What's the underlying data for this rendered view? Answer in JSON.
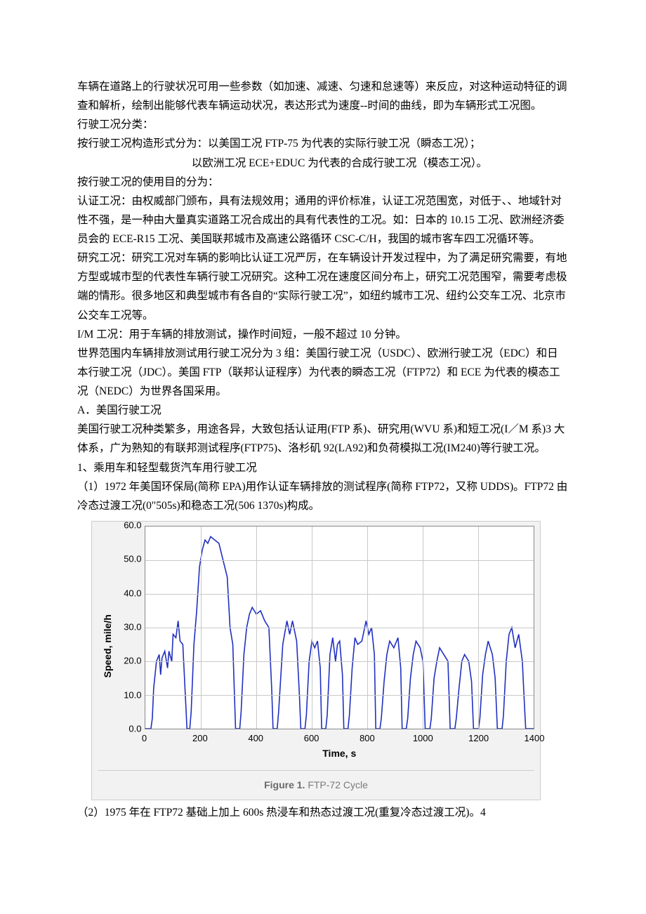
{
  "paragraphs": {
    "p1": "车辆在道路上的行驶状况可用一些参数（如加速、减速、匀速和怠速等）来反应，对这种运动特征的调查和解析，绘制出能够代表车辆运动状况，表达形式为速度--时间的曲线，即为车辆形式工况图。",
    "p2": "行驶工况分类：",
    "p3": "按行驶工况构造形式分为：以美国工况 FTP-75 为代表的实际行驶工况（瞬态工况）；",
    "p3b": "以欧洲工况 ECE+EDUC 为代表的合成行驶工况（模态工况）。",
    "p4": "按行驶工况的使用目的分为：",
    "p5": "认证工况：由权威部门颁布，具有法规效用；通用的评价标准，认证工况范围宽，对低于、、地域针对性不强，是一种由大量真实道路工况合成出的具有代表性的工况。如：日本的 10.15 工况、欧洲经济委员会的 ECE-R15 工况、美国联邦城市及高速公路循环 CSC-C/H，我国的城市客车四工况循环等。",
    "p6": "研究工况：研究工况对车辆的影响比认证工况严厉，在车辆设计开发过程中，为了满足研究需要，有地方型或城市型的代表性车辆行驶工况研究。这种工况在速度区间分布上，研究工况范围窄，需要考虑极端的情形。很多地区和典型城市有各自的“实际行驶工况”，如纽约城市工况、纽约公交车工况、北京市公交车工况等。",
    "p7": "I/M 工况：用于车辆的排放测试，操作时间短，一般不超过 10 分钟。",
    "p8": "世界范围内车辆排放测试用行驶工况分为 3 组：美国行驶工况（USDC）、欧洲行驶工况（EDC）和日本行驶工况（JDC）。美国 FTP（联邦认证程序）为代表的瞬态工况（FTP72）和 ECE 为代表的模态工况（NEDC）为世界各国采用。",
    "p9": "A．美国行驶工况",
    "p10": "美国行驶工况种类繁多，用途各异，大致包括认证用(FTP 系)、研究用(WVU 系)和短工况(I／M 系)3 大体系，广为熟知的有联邦测试程序(FTP75)、洛杉矶 92(LA92)和负荷模拟工况(IM240)等行驶工况。",
    "p11": "1、乘用车和轻型载货汽车用行驶工况",
    "p12": "（1）1972 年美国环保局(简称 EPA)用作认证车辆排放的测试程序(简称 FTP72，又称 UDDS)。FTP72 由冷态过渡工况(0\"505s)和稳态工况(506 1370s)构成。",
    "p13": "（2）1975 年在 FTP72 基础上加上 600s 热浸车和热态过渡工况(重复冷态过渡工况)。4"
  },
  "chart": {
    "type": "line",
    "caption_label": "Figure 1.",
    "caption_text": "FTP-72 Cycle",
    "xlabel": "Time, s",
    "ylabel": "Speed, mile/h",
    "xlim": [
      0,
      1400
    ],
    "ylim": [
      0,
      60
    ],
    "xticks": [
      0,
      200,
      400,
      600,
      800,
      1000,
      1200,
      1400
    ],
    "yticks": [
      0.0,
      10.0,
      20.0,
      30.0,
      40.0,
      50.0,
      60.0
    ],
    "xtick_labels": [
      "0",
      "200",
      "400",
      "600",
      "800",
      "1000",
      "1200",
      "1400"
    ],
    "ytick_labels": [
      "0.0",
      "10.0",
      "20.0",
      "30.0",
      "40.0",
      "50.0",
      "60.0"
    ],
    "line_color": "#2030c0",
    "line_width": 1.6,
    "background_color": "#f2f2f2",
    "plot_background": "#ffffff",
    "grid_color": "#c8c8c8",
    "border_color": "#cccccc",
    "label_fontsize": 14,
    "tick_fontsize": 13,
    "label_color": "#000000",
    "series": [
      [
        0,
        0
      ],
      [
        20,
        0
      ],
      [
        25,
        3
      ],
      [
        30,
        12
      ],
      [
        40,
        20
      ],
      [
        50,
        22
      ],
      [
        55,
        16
      ],
      [
        60,
        21
      ],
      [
        70,
        23
      ],
      [
        80,
        18
      ],
      [
        85,
        23
      ],
      [
        95,
        20
      ],
      [
        100,
        28
      ],
      [
        110,
        27
      ],
      [
        118,
        32
      ],
      [
        125,
        26
      ],
      [
        135,
        25
      ],
      [
        150,
        0
      ],
      [
        160,
        0
      ],
      [
        165,
        5
      ],
      [
        175,
        25
      ],
      [
        185,
        35
      ],
      [
        195,
        48
      ],
      [
        205,
        53
      ],
      [
        215,
        56
      ],
      [
        225,
        55
      ],
      [
        235,
        57
      ],
      [
        250,
        56
      ],
      [
        265,
        55
      ],
      [
        280,
        50
      ],
      [
        295,
        45
      ],
      [
        305,
        30
      ],
      [
        315,
        25
      ],
      [
        325,
        0
      ],
      [
        340,
        0
      ],
      [
        345,
        5
      ],
      [
        355,
        22
      ],
      [
        365,
        30
      ],
      [
        375,
        34
      ],
      [
        385,
        36
      ],
      [
        400,
        34
      ],
      [
        415,
        35
      ],
      [
        430,
        32
      ],
      [
        445,
        30
      ],
      [
        455,
        12
      ],
      [
        460,
        0
      ],
      [
        475,
        0
      ],
      [
        480,
        5
      ],
      [
        495,
        25
      ],
      [
        510,
        32
      ],
      [
        520,
        28
      ],
      [
        530,
        32
      ],
      [
        545,
        26
      ],
      [
        555,
        10
      ],
      [
        560,
        0
      ],
      [
        575,
        0
      ],
      [
        580,
        4
      ],
      [
        590,
        20
      ],
      [
        600,
        26
      ],
      [
        610,
        24
      ],
      [
        620,
        26
      ],
      [
        630,
        18
      ],
      [
        635,
        0
      ],
      [
        650,
        0
      ],
      [
        655,
        4
      ],
      [
        665,
        22
      ],
      [
        675,
        27
      ],
      [
        685,
        20
      ],
      [
        692,
        25
      ],
      [
        700,
        26
      ],
      [
        710,
        16
      ],
      [
        715,
        0
      ],
      [
        730,
        0
      ],
      [
        735,
        4
      ],
      [
        745,
        18
      ],
      [
        755,
        27
      ],
      [
        765,
        25
      ],
      [
        780,
        26
      ],
      [
        795,
        32
      ],
      [
        805,
        28
      ],
      [
        815,
        30
      ],
      [
        825,
        22
      ],
      [
        830,
        0
      ],
      [
        845,
        0
      ],
      [
        850,
        3
      ],
      [
        860,
        14
      ],
      [
        870,
        22
      ],
      [
        880,
        26
      ],
      [
        895,
        24
      ],
      [
        910,
        27
      ],
      [
        920,
        18
      ],
      [
        925,
        0
      ],
      [
        940,
        0
      ],
      [
        945,
        3
      ],
      [
        955,
        15
      ],
      [
        965,
        22
      ],
      [
        975,
        26
      ],
      [
        990,
        24
      ],
      [
        1000,
        20
      ],
      [
        1008,
        0
      ],
      [
        1025,
        0
      ],
      [
        1030,
        3
      ],
      [
        1040,
        15
      ],
      [
        1050,
        20
      ],
      [
        1060,
        24
      ],
      [
        1075,
        22
      ],
      [
        1090,
        20
      ],
      [
        1098,
        0
      ],
      [
        1115,
        0
      ],
      [
        1120,
        3
      ],
      [
        1130,
        12
      ],
      [
        1140,
        20
      ],
      [
        1150,
        22
      ],
      [
        1165,
        20
      ],
      [
        1175,
        14
      ],
      [
        1182,
        0
      ],
      [
        1200,
        0
      ],
      [
        1205,
        3
      ],
      [
        1215,
        16
      ],
      [
        1225,
        22
      ],
      [
        1235,
        26
      ],
      [
        1250,
        22
      ],
      [
        1260,
        15
      ],
      [
        1268,
        0
      ],
      [
        1285,
        0
      ],
      [
        1290,
        4
      ],
      [
        1300,
        20
      ],
      [
        1310,
        28
      ],
      [
        1320,
        30
      ],
      [
        1332,
        24
      ],
      [
        1345,
        28
      ],
      [
        1358,
        20
      ],
      [
        1365,
        8
      ],
      [
        1370,
        0
      ],
      [
        1400,
        0
      ]
    ]
  }
}
